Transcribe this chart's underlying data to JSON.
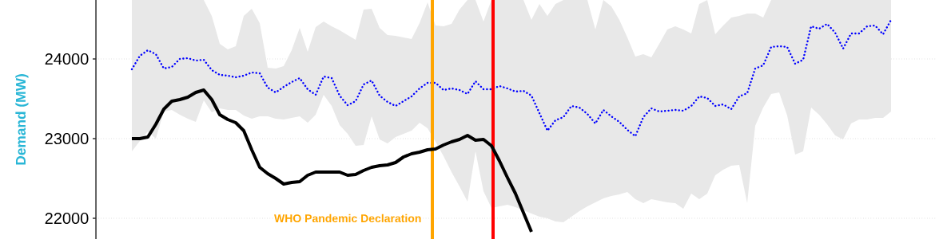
{
  "chart_data": {
    "type": "line",
    "ylabel": "Demand (MW)",
    "categories": [
      null,
      null,
      null,
      null,
      null,
      null,
      null,
      null,
      null,
      null,
      null,
      null,
      null,
      null,
      null,
      null,
      null,
      null,
      null,
      null,
      null,
      null,
      null,
      null,
      null,
      null,
      null,
      null,
      null,
      null,
      null,
      null,
      null,
      null,
      null,
      null,
      null,
      null,
      null,
      null,
      null,
      null,
      null,
      null,
      null,
      null,
      null,
      null,
      null,
      null,
      null,
      null,
      null,
      null,
      null,
      null,
      null,
      null,
      null,
      null,
      null,
      null,
      null,
      null,
      null,
      null,
      null,
      null,
      null,
      null,
      null,
      null,
      null,
      null,
      null,
      null,
      null,
      null,
      null,
      null,
      null,
      null,
      null,
      null,
      null,
      null,
      null,
      null,
      null,
      null,
      null,
      null,
      null,
      null,
      null,
      null
    ],
    "ylim": [
      21740,
      24740
    ],
    "yticks": [
      22000,
      23000,
      24000
    ],
    "grid": "y",
    "tick_labels": "y",
    "series": [
      {
        "color": "#0000ff",
        "line_style": "dotted",
        "values": [
          23870,
          24040,
          24110,
          24060,
          23880,
          23900,
          24000,
          24010,
          23980,
          23990,
          23860,
          23800,
          23790,
          23770,
          23790,
          23830,
          23820,
          23640,
          23580,
          23650,
          23710,
          23760,
          23620,
          23550,
          23780,
          23760,
          23540,
          23420,
          23470,
          23680,
          23730,
          23540,
          23460,
          23410,
          23470,
          23530,
          23630,
          23700,
          23700,
          23610,
          23630,
          23610,
          23560,
          23720,
          23620,
          23620,
          23660,
          23630,
          23590,
          23600,
          23540,
          23320,
          23100,
          23230,
          23270,
          23410,
          23390,
          23310,
          23190,
          23360,
          23280,
          23210,
          23110,
          23030,
          23270,
          23380,
          23340,
          23350,
          23360,
          23350,
          23410,
          23530,
          23510,
          23410,
          23430,
          23370,
          23530,
          23570,
          23880,
          23920,
          24150,
          24160,
          24150,
          23940,
          23990,
          24410,
          24380,
          24440,
          24330,
          24130,
          24320,
          24320,
          24410,
          24420,
          24310,
          24490
        ],
        "lower": [
          22840,
          22970,
          23090,
          23000,
          23340,
          23360,
          23300,
          23250,
          23210,
          23480,
          23330,
          23380,
          23360,
          23360,
          23290,
          23250,
          23280,
          23280,
          23250,
          23240,
          23260,
          23280,
          23200,
          23300,
          23550,
          23410,
          23170,
          23060,
          22910,
          22920,
          23280,
          22990,
          22940,
          23020,
          23060,
          23100,
          23200,
          23130,
          22960,
          22780,
          22580,
          22400,
          22210,
          22840,
          22340,
          22130,
          22150,
          22170,
          22140,
          22100,
          22060,
          22020,
          22000,
          21960,
          21950,
          22020,
          22090,
          22150,
          22200,
          22250,
          22280,
          22300,
          22330,
          22240,
          22190,
          22240,
          22220,
          22200,
          22190,
          22120,
          22310,
          22240,
          22310,
          22540,
          22610,
          22660,
          22670,
          22190,
          23160,
          23390,
          23560,
          23580,
          23290,
          22800,
          22840,
          23390,
          23300,
          23180,
          23040,
          22990,
          23190,
          23240,
          23240,
          23260,
          23260,
          23340
        ],
        "upper": [
          24740,
          24740,
          24740,
          24740,
          24740,
          24740,
          24740,
          24740,
          24740,
          24740,
          24540,
          24190,
          24120,
          24160,
          24540,
          24630,
          24450,
          23890,
          23880,
          23910,
          24110,
          24390,
          24090,
          24400,
          24470,
          24410,
          24360,
          24300,
          24240,
          24620,
          24630,
          24390,
          24300,
          24290,
          24270,
          24250,
          24450,
          24710,
          24420,
          24410,
          24440,
          24620,
          24740,
          24740,
          24470,
          24740,
          24740,
          24740,
          24740,
          24740,
          24490,
          24690,
          24540,
          24690,
          24740,
          24740,
          24740,
          24740,
          24370,
          24740,
          24660,
          24490,
          24270,
          24030,
          24060,
          24020,
          24190,
          24370,
          24410,
          24370,
          24320,
          24690,
          24740,
          24310,
          24420,
          24520,
          24540,
          24570,
          24570,
          24520,
          24740,
          24740,
          24740,
          24740,
          24740,
          24740,
          24740,
          24740,
          24740,
          24740,
          24740,
          24740,
          24740,
          24740,
          24740,
          24740
        ]
      },
      {
        "color": "#000000",
        "line_style": "solid",
        "values": [
          23000,
          23000,
          23020,
          23180,
          23370,
          23470,
          23490,
          23520,
          23580,
          23610,
          23490,
          23300,
          23240,
          23200,
          23100,
          22860,
          22640,
          22560,
          22500,
          22430,
          22450,
          22460,
          22540,
          22580,
          22580,
          22580,
          22580,
          22540,
          22550,
          22600,
          22640,
          22660,
          22670,
          22700,
          22770,
          22810,
          22830,
          22860,
          22870,
          22920,
          22960,
          22990,
          23040,
          22980,
          22990,
          22910,
          22720,
          22510,
          22310,
          22070,
          21830,
          null,
          null,
          null,
          null,
          null,
          null,
          null,
          null,
          null,
          null,
          null,
          null,
          null,
          null,
          null,
          null,
          null,
          null,
          null,
          null,
          null,
          null,
          null,
          null,
          null,
          null,
          null,
          null,
          null,
          null,
          null,
          null,
          null,
          null,
          null,
          null,
          null,
          null,
          null,
          null,
          null,
          null,
          null,
          null,
          null
        ]
      }
    ],
    "annotations": [
      "WHO Pandemic Declaration"
    ]
  }
}
